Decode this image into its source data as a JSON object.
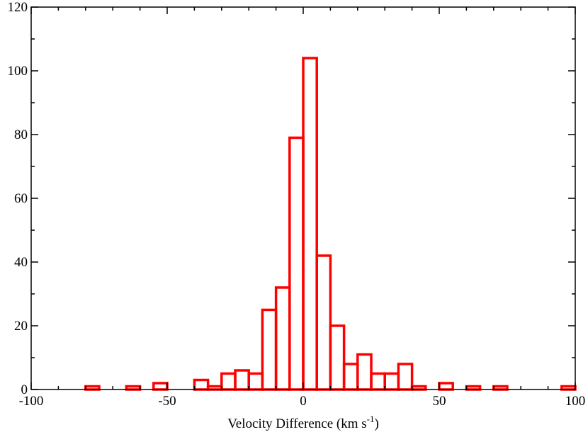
{
  "chart_data": {
    "type": "bar",
    "title": "",
    "xlabel_parts": {
      "main": "Velocity Difference (km s",
      "sup": "-1",
      "close": ")"
    },
    "ylabel": "",
    "xlim": [
      -100,
      100
    ],
    "ylim": [
      0,
      120
    ],
    "xticks": [
      -100,
      -50,
      0,
      50,
      100
    ],
    "yticks": [
      0,
      20,
      40,
      60,
      80,
      100,
      120
    ],
    "xtick_labels": [
      "-100",
      "-50",
      "0",
      "50",
      "100"
    ],
    "ytick_labels": [
      "0",
      "20",
      "40",
      "60",
      "80",
      "100",
      "120"
    ],
    "x_minor_step": 10,
    "y_minor_step": 10,
    "bin_width": 5,
    "bin_start": -100,
    "values": [
      0,
      0,
      0,
      0,
      1,
      0,
      0,
      1,
      0,
      2,
      0,
      0,
      3,
      1,
      5,
      6,
      5,
      25,
      32,
      79,
      104,
      42,
      20,
      8,
      11,
      5,
      5,
      8,
      1,
      0,
      2,
      0,
      1,
      0,
      1,
      0,
      0,
      0,
      0,
      1
    ],
    "bar_color": "#ff0000",
    "grid": false,
    "legend": "none"
  }
}
